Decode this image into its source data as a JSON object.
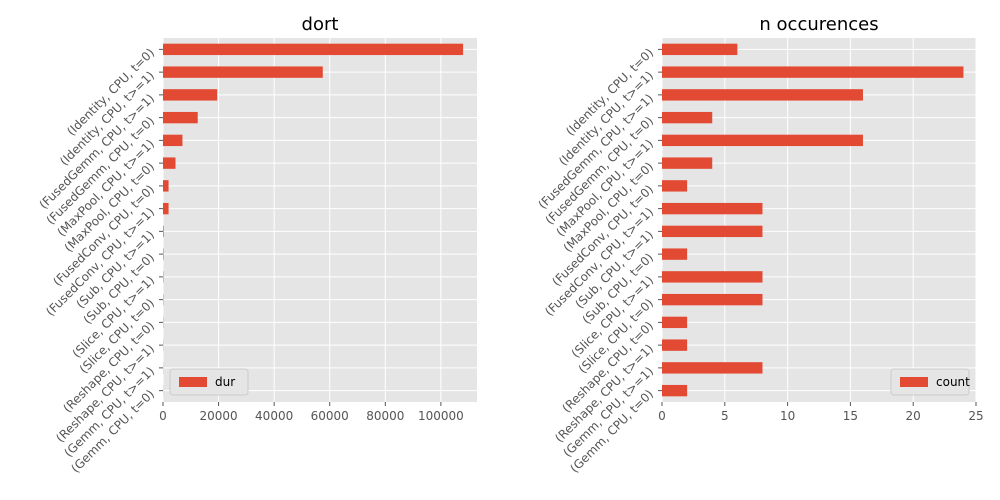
{
  "chart_data": [
    {
      "type": "bar",
      "orientation": "horizontal",
      "title": "dort",
      "xlabel": "",
      "ylabel": "",
      "xlim": [
        0,
        113000
      ],
      "xticks": [
        0,
        20000,
        40000,
        60000,
        80000,
        100000
      ],
      "xtick_labels": [
        "0",
        "20000",
        "40000",
        "60000",
        "80000",
        "100000"
      ],
      "grid": true,
      "legend_position": "bottom-left",
      "categories": [
        "(Identity, CPU, t=0)",
        "(Identity, CPU, t>=1)",
        "(FusedGemm, CPU, t>=1)",
        "(FusedGemm, CPU, t=0)",
        "(MaxPool, CPU, t>=1)",
        "(MaxPool, CPU, t=0)",
        "(FusedConv, CPU, t=0)",
        "(FusedConv, CPU, t>=1)",
        "(Sub, CPU, t>=1)",
        "(Sub, CPU, t=0)",
        "(Slice, CPU, t>=1)",
        "(Slice, CPU, t=0)",
        "(Reshape, CPU, t=0)",
        "(Reshape, CPU, t>=1)",
        "(Gemm, CPU, t>=1)",
        "(Gemm, CPU, t=0)"
      ],
      "series": [
        {
          "name": "dur",
          "color": "#e24a33",
          "values": [
            108000,
            57500,
            19500,
            12500,
            7000,
            4500,
            2000,
            2000,
            200,
            150,
            120,
            100,
            80,
            60,
            50,
            40
          ]
        }
      ]
    },
    {
      "type": "bar",
      "orientation": "horizontal",
      "title": "n occurences",
      "xlabel": "",
      "ylabel": "",
      "xlim": [
        0,
        25
      ],
      "xticks": [
        0,
        5,
        10,
        15,
        20,
        25
      ],
      "xtick_labels": [
        "0",
        "5",
        "10",
        "15",
        "20",
        "25"
      ],
      "grid": true,
      "legend_position": "bottom-right",
      "categories": [
        "(Identity, CPU, t=0)",
        "(Identity, CPU, t>=1)",
        "(FusedGemm, CPU, t>=1)",
        "(FusedGemm, CPU, t=0)",
        "(MaxPool, CPU, t>=1)",
        "(MaxPool, CPU, t=0)",
        "(FusedConv, CPU, t=0)",
        "(FusedConv, CPU, t>=1)",
        "(Sub, CPU, t>=1)",
        "(Sub, CPU, t=0)",
        "(Slice, CPU, t>=1)",
        "(Slice, CPU, t=0)",
        "(Reshape, CPU, t=0)",
        "(Reshape, CPU, t>=1)",
        "(Gemm, CPU, t>=1)",
        "(Gemm, CPU, t=0)"
      ],
      "series": [
        {
          "name": "count",
          "color": "#e24a33",
          "values": [
            6,
            24,
            16,
            4,
            16,
            4,
            2,
            8,
            8,
            2,
            8,
            8,
            2,
            2,
            8,
            2
          ]
        }
      ]
    }
  ]
}
